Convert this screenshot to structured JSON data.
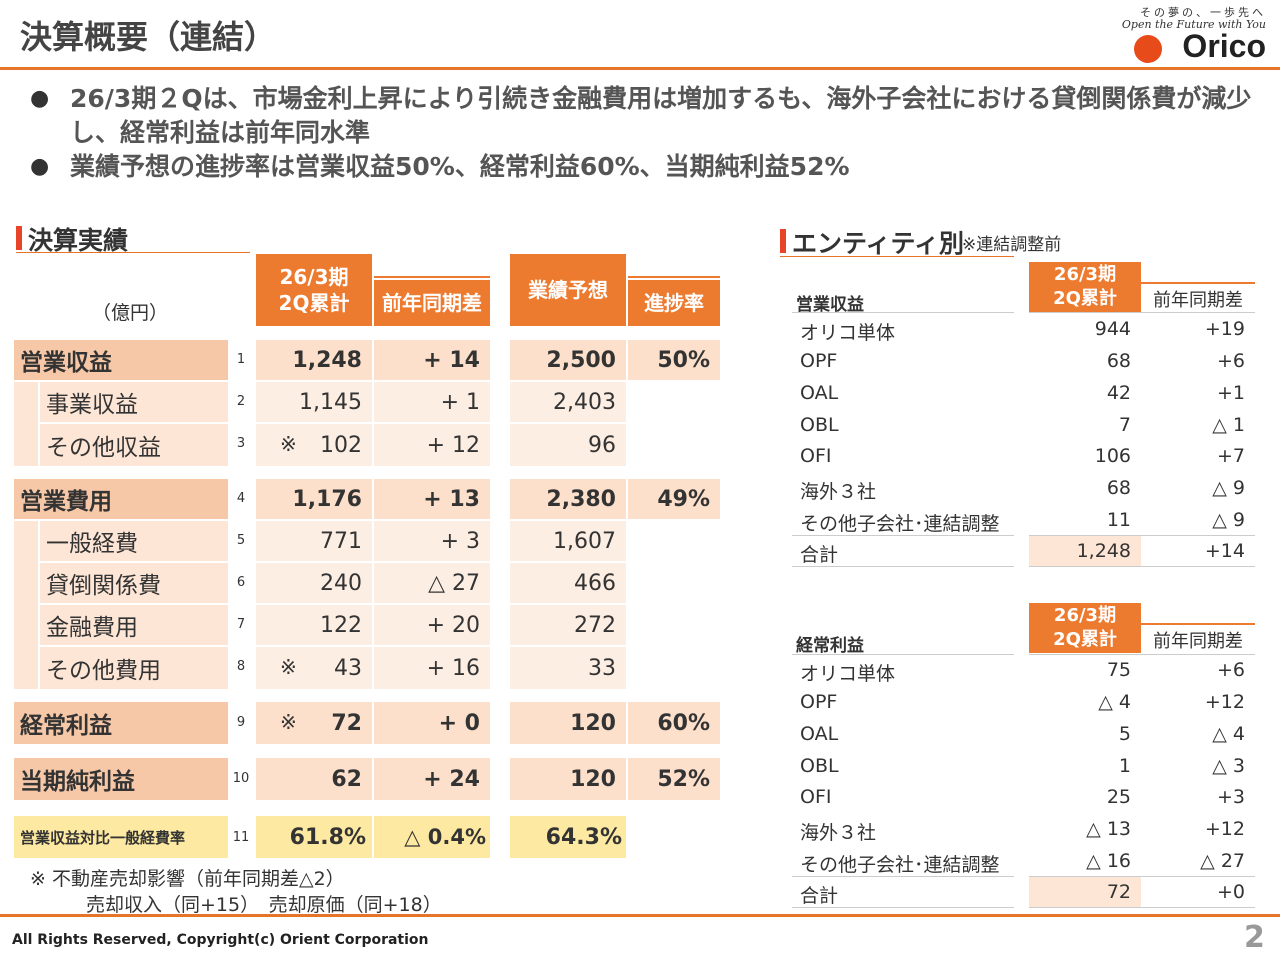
{
  "header": {
    "title": "決算概要（連結）",
    "logo_slogan": "その夢の、一歩先へ",
    "logo_tagline": "Open the Future with You",
    "logo_name": "Orico"
  },
  "bullets": [
    "26/3期２Qは、市場金利上昇により引続き金融費用は増加するも、海外子会社における貸倒関係費が減少し、経常利益は前年同水準",
    "業績予想の進捗率は営業収益50%、経常利益60%、当期純利益52%"
  ],
  "results": {
    "section_title": "決算実績",
    "unit": "（億円）",
    "col_period": "26/3期",
    "col_period2": "2Q累計",
    "col_yoy": "前年同期差",
    "col_forecast": "業績予想",
    "col_progress": "進捗率",
    "rows": [
      {
        "label": "営業収益",
        "idx": "1",
        "mark": "",
        "value": "1,248",
        "yoy": "+ 14",
        "forecast": "2,500",
        "progress": "50%"
      },
      {
        "label": "事業収益",
        "idx": "2",
        "mark": "",
        "value": "1,145",
        "yoy": "+ 1",
        "forecast": "2,403",
        "progress": ""
      },
      {
        "label": "その他収益",
        "idx": "3",
        "mark": "※",
        "value": "102",
        "yoy": "+ 12",
        "forecast": "96",
        "progress": ""
      },
      {
        "label": "営業費用",
        "idx": "4",
        "mark": "",
        "value": "1,176",
        "yoy": "+ 13",
        "forecast": "2,380",
        "progress": "49%"
      },
      {
        "label": "一般経費",
        "idx": "5",
        "mark": "",
        "value": "771",
        "yoy": "+ 3",
        "forecast": "1,607",
        "progress": ""
      },
      {
        "label": "貸倒関係費",
        "idx": "6",
        "mark": "",
        "value": "240",
        "yoy": "△ 27",
        "forecast": "466",
        "progress": ""
      },
      {
        "label": "金融費用",
        "idx": "7",
        "mark": "",
        "value": "122",
        "yoy": "+ 20",
        "forecast": "272",
        "progress": ""
      },
      {
        "label": "その他費用",
        "idx": "8",
        "mark": "※",
        "value": "43",
        "yoy": "+ 16",
        "forecast": "33",
        "progress": ""
      },
      {
        "label": "経常利益",
        "idx": "9",
        "mark": "※",
        "value": "72",
        "yoy": "+ 0",
        "forecast": "120",
        "progress": "60%"
      },
      {
        "label": "当期純利益",
        "idx": "10",
        "mark": "",
        "value": "62",
        "yoy": "+ 24",
        "forecast": "120",
        "progress": "52%"
      },
      {
        "label": "営業収益対比一般経費率",
        "idx": "11",
        "mark": "",
        "value": "61.8%",
        "yoy": "△ 0.4%",
        "forecast": "64.3%",
        "progress": ""
      }
    ],
    "note1": "※ 不動産売却影響（前年同期差△2）",
    "note2": "売却収入（同+15）　売却原価（同+18）"
  },
  "entity": {
    "section_title": "エンティティ別",
    "note": "※連結調整前",
    "col_period": "26/3期",
    "col_period2": "2Q累計",
    "col_yoy": "前年同期差",
    "revenue_title": "営業収益",
    "revenue": [
      {
        "name": "オリコ単体",
        "value": "944",
        "yoy": "+19"
      },
      {
        "name": "OPF",
        "value": "68",
        "yoy": "+6"
      },
      {
        "name": "OAL",
        "value": "42",
        "yoy": "+1"
      },
      {
        "name": "OBL",
        "value": "7",
        "yoy": "△ 1"
      },
      {
        "name": "OFI",
        "value": "106",
        "yoy": "+7"
      },
      {
        "name": "海外３社",
        "value": "68",
        "yoy": "△ 9"
      },
      {
        "name": "その他子会社･連結調整",
        "value": "11",
        "yoy": "△ 9"
      },
      {
        "name": "合計",
        "value": "1,248",
        "yoy": "+14"
      }
    ],
    "profit_title": "経常利益",
    "profit": [
      {
        "name": "オリコ単体",
        "value": "75",
        "yoy": "+6"
      },
      {
        "name": "OPF",
        "value": "△ 4",
        "yoy": "+12"
      },
      {
        "name": "OAL",
        "value": "5",
        "yoy": "△ 4"
      },
      {
        "name": "OBL",
        "value": "1",
        "yoy": "△ 3"
      },
      {
        "name": "OFI",
        "value": "25",
        "yoy": "+3"
      },
      {
        "name": "海外３社",
        "value": "△ 13",
        "yoy": "+12"
      },
      {
        "name": "その他子会社･連結調整",
        "value": "△ 16",
        "yoy": "△ 27"
      },
      {
        "name": "合計",
        "value": "72",
        "yoy": "+0"
      }
    ]
  },
  "footer": {
    "copyright": "All Rights Reserved, Copyright(c) Orient Corporation",
    "page": "2"
  },
  "colors": {
    "accent": "#e8742a",
    "header_fill": "#ec7a2f",
    "row_main": "#f7c8a8",
    "row_sub": "#fde6d6",
    "highlight": "#fde9a2"
  }
}
